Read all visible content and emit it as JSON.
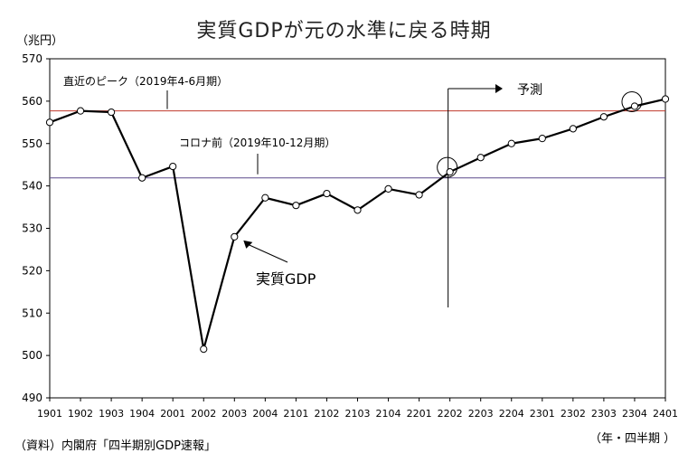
{
  "chart_data": {
    "type": "line",
    "title": "実質GDPが元の水準に戻る時期",
    "ylabel": "（兆円）",
    "xlabel": "（年・四半期 ）",
    "source": "（資料）内閣府「四半期別GDP速報」",
    "ylim": [
      490,
      570
    ],
    "yticks": [
      "490",
      "500",
      "510",
      "520",
      "530",
      "540",
      "550",
      "560",
      "570"
    ],
    "categories": [
      "1901",
      "1902",
      "1903",
      "1904",
      "2001",
      "2002",
      "2003",
      "2004",
      "2101",
      "2102",
      "2103",
      "2104",
      "2201",
      "2202",
      "2203",
      "2204",
      "2301",
      "2302",
      "2303",
      "2304",
      "2401"
    ],
    "series": [
      {
        "name": "実質GDP",
        "values": [
          555.0,
          557.7,
          557.4,
          541.9,
          544.6,
          501.5,
          528.0,
          537.2,
          535.4,
          538.2,
          534.3,
          539.3,
          537.9,
          543.3,
          546.7,
          550.0,
          551.2,
          553.5,
          556.3,
          558.8,
          560.5
        ]
      }
    ],
    "reference_lines": [
      {
        "label": "直近のピーク（2019年4-6月期）",
        "value": 557.7,
        "color": "#c0392b"
      },
      {
        "label": "コロナ前（2019年10-12月期）",
        "value": 541.9,
        "color": "#5b4a8b"
      }
    ],
    "forecast_label": "予測",
    "forecast_start": "2202",
    "highlighted": [
      "2202",
      "2304"
    ],
    "grid": false
  }
}
